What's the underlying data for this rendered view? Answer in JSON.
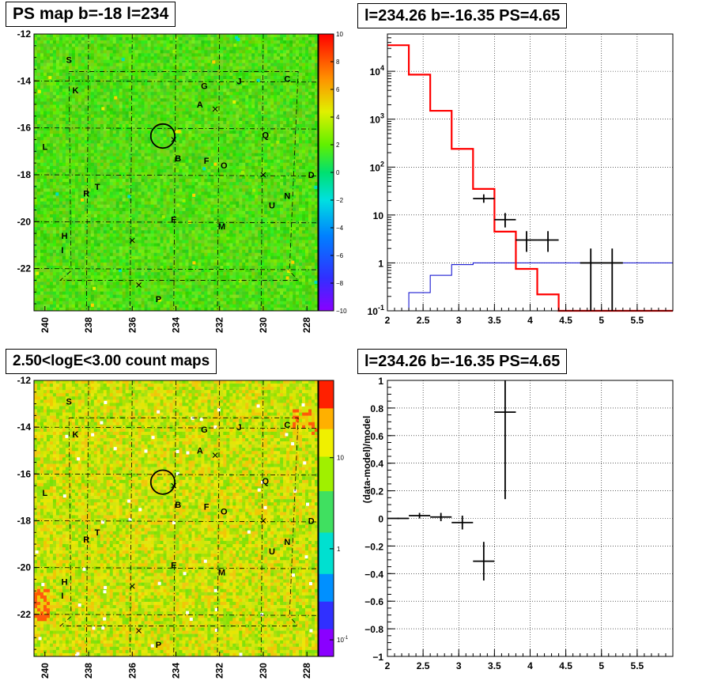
{
  "chart_data": [
    {
      "type": "heatmap",
      "title": "PS map b=-18 l=234",
      "x_ticks": [
        "240",
        "238",
        "236",
        "234",
        "232",
        "230",
        "228"
      ],
      "y_ticks": [
        "-12",
        "-14",
        "-16",
        "-18",
        "-20",
        "-22"
      ],
      "xlim": [
        240.5,
        227.5
      ],
      "ylim": [
        -23.8,
        -12
      ],
      "colorbar_ticks": [
        "10",
        "8",
        "6",
        "4",
        "2",
        "0",
        "−2",
        "−4",
        "−6",
        "−8",
        "−10"
      ],
      "colorbar_range": [
        -10,
        10
      ],
      "source_labels": [
        {
          "text": "S",
          "l": 238.9,
          "b": -13.1
        },
        {
          "text": "K",
          "l": 238.6,
          "b": -14.4
        },
        {
          "text": "G",
          "l": 232.7,
          "b": -14.2
        },
        {
          "text": "J",
          "l": 231.1,
          "b": -14.0
        },
        {
          "text": "C",
          "l": 228.9,
          "b": -13.9
        },
        {
          "text": "A",
          "l": 232.9,
          "b": -15.0
        },
        {
          "text": "L",
          "l": 240.0,
          "b": -16.8
        },
        {
          "text": "Q",
          "l": 229.9,
          "b": -16.3
        },
        {
          "text": "B",
          "l": 233.9,
          "b": -17.3
        },
        {
          "text": "F",
          "l": 232.6,
          "b": -17.4
        },
        {
          "text": "O",
          "l": 231.8,
          "b": -17.6
        },
        {
          "text": "D",
          "l": 227.8,
          "b": -18.0
        },
        {
          "text": "T",
          "l": 237.6,
          "b": -18.5
        },
        {
          "text": "R",
          "l": 238.1,
          "b": -18.8
        },
        {
          "text": "N",
          "l": 228.9,
          "b": -18.9
        },
        {
          "text": "U",
          "l": 229.6,
          "b": -19.3
        },
        {
          "text": "E",
          "l": 234.1,
          "b": -19.9
        },
        {
          "text": "M",
          "l": 231.9,
          "b": -20.2
        },
        {
          "text": "H",
          "l": 239.1,
          "b": -20.6
        },
        {
          "text": "I",
          "l": 239.2,
          "b": -21.2
        },
        {
          "text": "P",
          "l": 234.8,
          "b": -23.3
        }
      ],
      "cross_markers": [
        {
          "l": 232.2,
          "b": -15.2
        },
        {
          "l": 234.1,
          "b": -16.5
        },
        {
          "l": 230.0,
          "b": -18.0
        },
        {
          "l": 236.0,
          "b": -20.8
        },
        {
          "l": 235.7,
          "b": -22.7
        }
      ],
      "circle": {
        "l": 234.6,
        "b": -16.35,
        "radius_deg": 0.55
      }
    },
    {
      "type": "histogram",
      "title": "l=234.26 b=-16.35 PS=4.65",
      "x_ticks": [
        "2",
        "2.5",
        "3",
        "3.5",
        "4",
        "4.5",
        "5",
        "5.5"
      ],
      "xlim": [
        2,
        6
      ],
      "y_scale": "log",
      "ylim": [
        0.1,
        60000
      ],
      "y_ticks": [
        "10^-1",
        "1",
        "10",
        "10^2",
        "10^3",
        "10^4"
      ],
      "grid": true,
      "model_red": {
        "edges": [
          2,
          2.3,
          2.6,
          2.9,
          3.2,
          3.5,
          3.8,
          4.1,
          4.4,
          6
        ],
        "values": [
          35000,
          8500,
          1500,
          240,
          35,
          4.5,
          0.75,
          0.22,
          0.06
        ]
      },
      "model_blue": {
        "edges": [
          2,
          2.3,
          2.6,
          2.9,
          3.2,
          3.5,
          3.8,
          4.1,
          4.4,
          4.7,
          5.0,
          5.3,
          6
        ],
        "values": [
          0.1,
          0.24,
          0.55,
          0.92,
          1,
          1,
          1,
          1,
          1,
          1,
          1,
          1
        ]
      },
      "data_points": [
        {
          "x": 3.35,
          "xerr": 0.15,
          "y": 22,
          "ylo": 18,
          "yhi": 27
        },
        {
          "x": 3.65,
          "xerr": 0.15,
          "y": 8,
          "ylo": 5.5,
          "yhi": 11
        },
        {
          "x": 3.95,
          "xerr": 0.15,
          "y": 3,
          "ylo": 1.7,
          "yhi": 4.6
        },
        {
          "x": 4.25,
          "xerr": 0.15,
          "y": 3,
          "ylo": 1.7,
          "yhi": 4.6
        },
        {
          "x": 4.85,
          "xerr": 0.15,
          "y": 1,
          "ylo": 0.1,
          "yhi": 2.0
        },
        {
          "x": 5.15,
          "xerr": 0.15,
          "y": 1,
          "ylo": 0.1,
          "yhi": 2.0
        }
      ]
    },
    {
      "type": "heatmap",
      "title": "2.50<logE<3.00 count maps",
      "x_ticks": [
        "240",
        "238",
        "236",
        "234",
        "232",
        "230",
        "228"
      ],
      "y_ticks": [
        "-12",
        "-14",
        "-16",
        "-18",
        "-20",
        "-22"
      ],
      "xlim": [
        240.5,
        227.5
      ],
      "ylim": [
        -23.8,
        -12
      ],
      "colorbar_scale": "log",
      "colorbar_ticks": [
        "10",
        "1",
        "10^-1"
      ],
      "source_labels": [
        {
          "text": "S",
          "l": 238.9,
          "b": -12.9
        },
        {
          "text": "K",
          "l": 238.6,
          "b": -14.3
        },
        {
          "text": "G",
          "l": 232.7,
          "b": -14.1
        },
        {
          "text": "J",
          "l": 231.1,
          "b": -14.0
        },
        {
          "text": "C",
          "l": 228.9,
          "b": -13.9
        },
        {
          "text": "A",
          "l": 232.9,
          "b": -15.0
        },
        {
          "text": "L",
          "l": 240.0,
          "b": -16.8
        },
        {
          "text": "Q",
          "l": 229.9,
          "b": -16.3
        },
        {
          "text": "B",
          "l": 233.9,
          "b": -17.3
        },
        {
          "text": "F",
          "l": 232.6,
          "b": -17.4
        },
        {
          "text": "O",
          "l": 231.8,
          "b": -17.6
        },
        {
          "text": "D",
          "l": 227.8,
          "b": -18.0
        },
        {
          "text": "T",
          "l": 237.6,
          "b": -18.5
        },
        {
          "text": "R",
          "l": 238.1,
          "b": -18.8
        },
        {
          "text": "N",
          "l": 228.9,
          "b": -18.9
        },
        {
          "text": "U",
          "l": 229.6,
          "b": -19.3
        },
        {
          "text": "E",
          "l": 234.1,
          "b": -19.9
        },
        {
          "text": "M",
          "l": 231.9,
          "b": -20.2
        },
        {
          "text": "H",
          "l": 239.1,
          "b": -20.6
        },
        {
          "text": "I",
          "l": 239.2,
          "b": -21.2
        },
        {
          "text": "P",
          "l": 234.8,
          "b": -23.3
        }
      ],
      "cross_markers": [
        {
          "l": 232.2,
          "b": -15.2
        },
        {
          "l": 234.1,
          "b": -16.5
        },
        {
          "l": 230.0,
          "b": -18.0
        },
        {
          "l": 236.0,
          "b": -20.8
        },
        {
          "l": 235.7,
          "b": -22.7
        }
      ],
      "circle": {
        "l": 234.6,
        "b": -16.35,
        "radius_deg": 0.55
      }
    },
    {
      "type": "scatter",
      "title": "l=234.26 b=-16.35 PS=4.65",
      "ylabel": "(data-model)/model",
      "x_ticks": [
        "2",
        "2.5",
        "3",
        "3.5",
        "4",
        "4.5",
        "5",
        "5.5"
      ],
      "y_ticks": [
        "1",
        "0.8",
        "0.6",
        "0.4",
        "0.2",
        "0",
        "−0.2",
        "−0.4",
        "−0.6",
        "−0.8",
        "−1"
      ],
      "xlim": [
        2,
        6
      ],
      "ylim": [
        -1,
        1
      ],
      "grid": true,
      "data_points": [
        {
          "x": 2.15,
          "xerr": 0.15,
          "y": 0.0,
          "ylo": -0.005,
          "yhi": 0.005
        },
        {
          "x": 2.45,
          "xerr": 0.15,
          "y": 0.02,
          "ylo": 0.0,
          "yhi": 0.04
        },
        {
          "x": 2.75,
          "xerr": 0.15,
          "y": 0.01,
          "ylo": -0.02,
          "yhi": 0.04
        },
        {
          "x": 3.05,
          "xerr": 0.15,
          "y": -0.03,
          "ylo": -0.08,
          "yhi": 0.02
        },
        {
          "x": 3.35,
          "xerr": 0.15,
          "y": -0.31,
          "ylo": -0.45,
          "yhi": -0.17
        },
        {
          "x": 3.65,
          "xerr": 0.15,
          "y": 0.77,
          "ylo": 0.14,
          "yhi": 1.0
        }
      ]
    }
  ]
}
